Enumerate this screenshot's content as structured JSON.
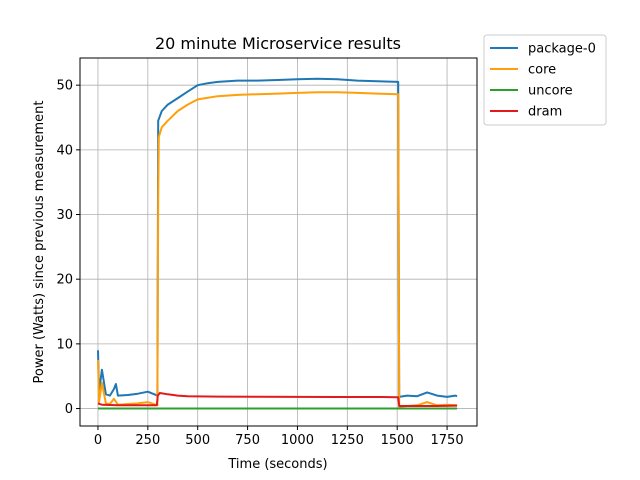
{
  "chart_data": {
    "type": "line",
    "title": "20 minute Microservice results",
    "xlabel": "Time (seconds)",
    "ylabel": "Power (Watts) since previous measurement",
    "xlim": [
      -90,
      1900
    ],
    "ylim": [
      -2.7,
      54.2
    ],
    "xticks": [
      0,
      250,
      500,
      750,
      1000,
      1250,
      1500,
      1750
    ],
    "xtick_labels": [
      "0",
      "250",
      "500",
      "750",
      "1000",
      "1250",
      "1500",
      "1750"
    ],
    "yticks": [
      0,
      10,
      20,
      30,
      40,
      50
    ],
    "ytick_labels": [
      "0",
      "10",
      "20",
      "30",
      "40",
      "50"
    ],
    "grid": true,
    "legend_position": "outside top-right",
    "series": [
      {
        "name": "package-0",
        "color": "#1f77b4",
        "points": [
          [
            0,
            9.0
          ],
          [
            5,
            2.5
          ],
          [
            20,
            6.0
          ],
          [
            40,
            2.2
          ],
          [
            60,
            2.0
          ],
          [
            80,
            3.0
          ],
          [
            90,
            3.8
          ],
          [
            100,
            2.0
          ],
          [
            150,
            2.1
          ],
          [
            200,
            2.3
          ],
          [
            250,
            2.6
          ],
          [
            298,
            2.0
          ],
          [
            302,
            44.5
          ],
          [
            320,
            46.0
          ],
          [
            350,
            47.0
          ],
          [
            400,
            48.0
          ],
          [
            450,
            49.0
          ],
          [
            500,
            50.0
          ],
          [
            550,
            50.3
          ],
          [
            600,
            50.5
          ],
          [
            700,
            50.7
          ],
          [
            800,
            50.7
          ],
          [
            900,
            50.8
          ],
          [
            1000,
            50.9
          ],
          [
            1100,
            51.0
          ],
          [
            1200,
            50.9
          ],
          [
            1300,
            50.7
          ],
          [
            1400,
            50.6
          ],
          [
            1505,
            50.5
          ],
          [
            1510,
            1.8
          ],
          [
            1550,
            2.0
          ],
          [
            1600,
            1.9
          ],
          [
            1650,
            2.5
          ],
          [
            1700,
            2.0
          ],
          [
            1750,
            1.8
          ],
          [
            1790,
            2.0
          ],
          [
            1800,
            1.9
          ]
        ]
      },
      {
        "name": "core",
        "color": "#ff9f0a",
        "points": [
          [
            0,
            7.5
          ],
          [
            5,
            1.0
          ],
          [
            20,
            4.0
          ],
          [
            40,
            0.8
          ],
          [
            60,
            0.7
          ],
          [
            80,
            1.5
          ],
          [
            100,
            0.6
          ],
          [
            150,
            0.7
          ],
          [
            200,
            0.8
          ],
          [
            250,
            1.0
          ],
          [
            298,
            0.5
          ],
          [
            302,
            32.5
          ],
          [
            305,
            42.0
          ],
          [
            320,
            43.5
          ],
          [
            350,
            44.5
          ],
          [
            400,
            46.0
          ],
          [
            450,
            47.0
          ],
          [
            500,
            47.8
          ],
          [
            600,
            48.3
          ],
          [
            700,
            48.5
          ],
          [
            800,
            48.6
          ],
          [
            900,
            48.7
          ],
          [
            1000,
            48.8
          ],
          [
            1100,
            48.9
          ],
          [
            1200,
            48.9
          ],
          [
            1300,
            48.8
          ],
          [
            1400,
            48.7
          ],
          [
            1505,
            48.6
          ],
          [
            1510,
            0.3
          ],
          [
            1550,
            0.4
          ],
          [
            1600,
            0.5
          ],
          [
            1650,
            1.0
          ],
          [
            1700,
            0.5
          ],
          [
            1750,
            0.6
          ],
          [
            1800,
            0.5
          ]
        ]
      },
      {
        "name": "uncore",
        "color": "#2ca02c",
        "points": [
          [
            0,
            0.0
          ],
          [
            1800,
            0.0
          ]
        ]
      },
      {
        "name": "dram",
        "color": "#e31a1c",
        "points": [
          [
            0,
            0.8
          ],
          [
            20,
            0.6
          ],
          [
            100,
            0.5
          ],
          [
            200,
            0.5
          ],
          [
            295,
            0.5
          ],
          [
            300,
            2.0
          ],
          [
            310,
            2.4
          ],
          [
            350,
            2.2
          ],
          [
            400,
            2.0
          ],
          [
            450,
            1.9
          ],
          [
            600,
            1.85
          ],
          [
            800,
            1.82
          ],
          [
            1000,
            1.8
          ],
          [
            1200,
            1.78
          ],
          [
            1400,
            1.78
          ],
          [
            1505,
            1.75
          ],
          [
            1510,
            0.4
          ],
          [
            1600,
            0.4
          ],
          [
            1700,
            0.4
          ],
          [
            1800,
            0.45
          ]
        ]
      }
    ]
  }
}
